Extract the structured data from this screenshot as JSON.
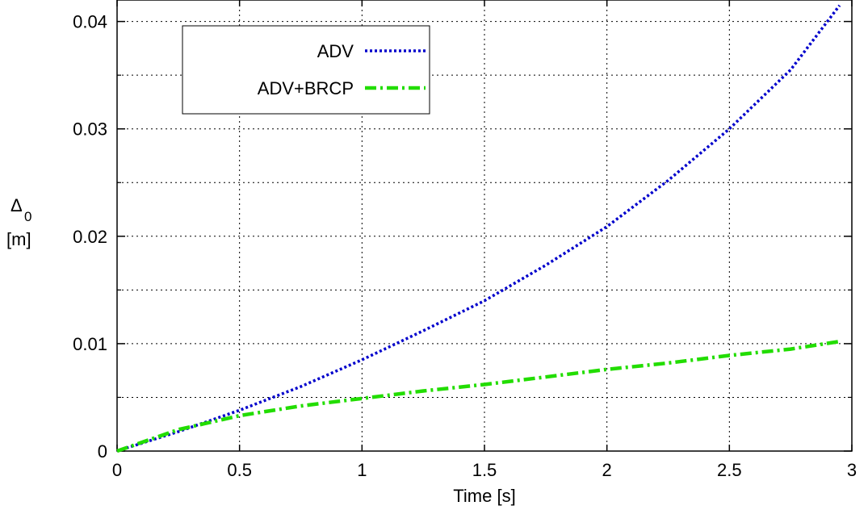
{
  "chart_data": {
    "type": "line",
    "title": "",
    "xlabel": "Time [s]",
    "ylabel_lines": [
      "Δ",
      "0",
      "[m]"
    ],
    "xlim": [
      0,
      3
    ],
    "ylim": [
      0,
      0.042
    ],
    "xticks": [
      0,
      0.5,
      1,
      1.5,
      2,
      2.5,
      3
    ],
    "xtick_labels": [
      "0",
      "0.5",
      "1",
      "1.5",
      "2",
      "2.5",
      "3"
    ],
    "yticks": [
      0,
      0.01,
      0.02,
      0.03,
      0.04
    ],
    "ytick_labels": [
      "0",
      "0.01",
      "0.02",
      "0.03",
      "0.04"
    ],
    "minor_yticks": [
      0.005,
      0.015,
      0.025,
      0.035
    ],
    "grid": true,
    "legend_position": "top-left",
    "series": [
      {
        "name": "ADV",
        "color": "#0000cc",
        "style": "dotted",
        "x": [
          0,
          0.25,
          0.5,
          0.75,
          1,
          1.25,
          1.5,
          1.75,
          2,
          2.25,
          2.5,
          2.75,
          2.95
        ],
        "y": [
          0,
          0.0018,
          0.0038,
          0.006,
          0.0085,
          0.0112,
          0.014,
          0.0173,
          0.0209,
          0.0252,
          0.03,
          0.0355,
          0.0415
        ]
      },
      {
        "name": "ADV+BRCP",
        "color": "#22dd00",
        "style": "dash-dot",
        "x": [
          0,
          0.25,
          0.5,
          0.75,
          1,
          1.25,
          1.5,
          1.75,
          2,
          2.25,
          2.5,
          2.75,
          2.95
        ],
        "y": [
          0,
          0.002,
          0.0033,
          0.0042,
          0.0049,
          0.0056,
          0.0062,
          0.0069,
          0.0076,
          0.0082,
          0.0089,
          0.0095,
          0.0102
        ]
      }
    ]
  }
}
